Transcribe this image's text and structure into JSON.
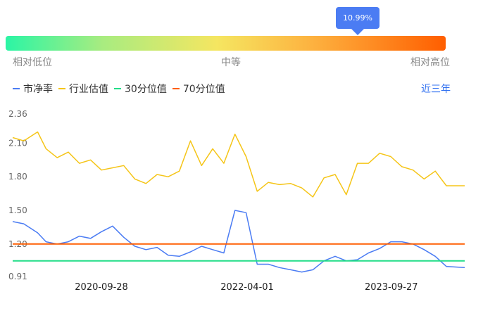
{
  "indicator": {
    "tooltip": "10.99%",
    "percentile": 0.8,
    "labels": {
      "low": "相对低位",
      "mid": "中等",
      "high": "相对高位"
    }
  },
  "legend": [
    {
      "name": "市净率",
      "color": "#4b7cf3"
    },
    {
      "name": "行业估值",
      "color": "#f5c518"
    },
    {
      "name": "30分位值",
      "color": "#22dd88"
    },
    {
      "name": "70分位值",
      "color": "#ff5e00"
    }
  ],
  "period_label": "近三年",
  "chart_data": {
    "type": "line",
    "ylim": [
      0.91,
      2.36
    ],
    "y_ticks": [
      "2.36",
      "2.10",
      "1.80",
      "1.50",
      "1.20",
      "0.91"
    ],
    "x_ticks": [
      "2020-09-28",
      "2022-04-01",
      "2023-09-27"
    ],
    "x_range": [
      "2019-10-29",
      "2024-06-30"
    ],
    "series": [
      {
        "name": "行业估值",
        "color": "#f5c518",
        "x": [
          "2019-10-29",
          "2019-12-10",
          "2020-01-31",
          "2020-03-03",
          "2020-04-14",
          "2020-05-26",
          "2020-07-07",
          "2020-08-18",
          "2020-09-28",
          "2020-11-09",
          "2020-12-21",
          "2021-02-01",
          "2021-03-15",
          "2021-04-26",
          "2021-06-07",
          "2021-07-19",
          "2021-08-30",
          "2021-10-11",
          "2021-11-22",
          "2022-01-03",
          "2022-02-14",
          "2022-03-28",
          "2022-05-09",
          "2022-06-20",
          "2022-08-01",
          "2022-09-12",
          "2022-10-24",
          "2022-12-05",
          "2023-01-16",
          "2023-02-27",
          "2023-04-10",
          "2023-05-22",
          "2023-07-03",
          "2023-08-14",
          "2023-09-25",
          "2023-11-06",
          "2023-12-18",
          "2024-01-29",
          "2024-03-11",
          "2024-04-22",
          "2024-06-30"
        ],
        "values": [
          2.15,
          2.12,
          2.2,
          2.05,
          1.97,
          2.02,
          1.92,
          1.95,
          1.86,
          1.88,
          1.9,
          1.78,
          1.74,
          1.82,
          1.8,
          1.85,
          2.12,
          1.9,
          2.05,
          1.92,
          2.18,
          1.98,
          1.67,
          1.75,
          1.73,
          1.74,
          1.7,
          1.62,
          1.79,
          1.82,
          1.64,
          1.92,
          1.92,
          2.01,
          1.98,
          1.89,
          1.86,
          1.78,
          1.85,
          1.72,
          1.72
        ]
      },
      {
        "name": "市净率",
        "color": "#4b7cf3",
        "x": [
          "2019-10-29",
          "2019-12-10",
          "2020-01-31",
          "2020-03-03",
          "2020-04-14",
          "2020-05-26",
          "2020-07-07",
          "2020-08-18",
          "2020-09-28",
          "2020-11-09",
          "2020-12-21",
          "2021-02-01",
          "2021-03-15",
          "2021-04-26",
          "2021-06-07",
          "2021-07-19",
          "2021-08-30",
          "2021-10-11",
          "2021-11-22",
          "2022-01-03",
          "2022-02-14",
          "2022-03-28",
          "2022-05-09",
          "2022-06-20",
          "2022-08-01",
          "2022-09-12",
          "2022-10-24",
          "2022-12-05",
          "2023-01-16",
          "2023-02-27",
          "2023-04-10",
          "2023-05-22",
          "2023-07-03",
          "2023-08-14",
          "2023-09-25",
          "2023-11-06",
          "2023-12-18",
          "2024-01-29",
          "2024-03-11",
          "2024-04-22",
          "2024-06-30"
        ],
        "values": [
          1.4,
          1.38,
          1.3,
          1.22,
          1.2,
          1.22,
          1.27,
          1.25,
          1.31,
          1.36,
          1.26,
          1.18,
          1.15,
          1.17,
          1.1,
          1.09,
          1.13,
          1.18,
          1.15,
          1.12,
          1.5,
          1.48,
          1.02,
          1.02,
          0.99,
          0.97,
          0.95,
          0.97,
          1.05,
          1.09,
          1.05,
          1.06,
          1.12,
          1.16,
          1.22,
          1.22,
          1.2,
          1.15,
          1.09,
          1.0,
          0.99
        ]
      },
      {
        "name": "30分位值",
        "color": "#22dd88",
        "x": [
          "2019-10-29",
          "2024-06-30"
        ],
        "values": [
          1.05,
          1.05
        ]
      },
      {
        "name": "70分位值",
        "color": "#ff5e00",
        "x": [
          "2019-10-29",
          "2024-06-30"
        ],
        "values": [
          1.2,
          1.2
        ]
      }
    ]
  }
}
